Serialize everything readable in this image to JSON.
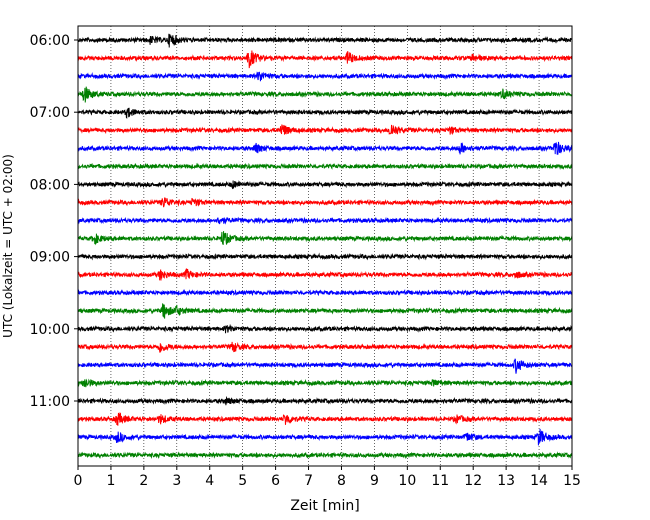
{
  "chart_data": {
    "type": "line",
    "title": "",
    "xlabel": "Zeit  [min]",
    "ylabel": "UTC (Lokalzeit = UTC + 02:00)",
    "xlim": [
      0,
      15
    ],
    "x_ticks": [
      0,
      1,
      2,
      3,
      4,
      5,
      6,
      7,
      8,
      9,
      10,
      11,
      12,
      13,
      14,
      15
    ],
    "x_tick_labels": [
      "0",
      "1",
      "2",
      "3",
      "4",
      "5",
      "6",
      "7",
      "8",
      "9",
      "10",
      "11",
      "12",
      "13",
      "14",
      "15"
    ],
    "y_tick_labels": [
      "06:00",
      "07:00",
      "08:00",
      "09:00",
      "10:00",
      "11:00"
    ],
    "grid": "vertical-dotted",
    "legend": "none",
    "trace_colors": [
      "#000000",
      "#ff0000",
      "#0000ff",
      "#008000"
    ],
    "traces_start": "06:00",
    "trace_interval_min": 15,
    "series": [
      {
        "start": "06:00",
        "color": "#000000",
        "events": [
          [
            2.2,
            0.35
          ],
          [
            2.8,
            0.75
          ]
        ]
      },
      {
        "start": "06:15",
        "color": "#ff0000",
        "events": [
          [
            5.2,
            1.0
          ],
          [
            8.2,
            0.6
          ],
          [
            12.0,
            0.35
          ]
        ]
      },
      {
        "start": "06:30",
        "color": "#0000ff",
        "events": [
          [
            5.5,
            0.55
          ]
        ]
      },
      {
        "start": "06:45",
        "color": "#008000",
        "events": [
          [
            0.2,
            0.85
          ],
          [
            12.9,
            0.45
          ]
        ]
      },
      {
        "start": "07:00",
        "color": "#000000",
        "events": [
          [
            1.5,
            0.5
          ]
        ]
      },
      {
        "start": "07:15",
        "color": "#ff0000",
        "events": [
          [
            6.2,
            0.65
          ],
          [
            9.5,
            0.75
          ],
          [
            11.3,
            0.3
          ]
        ]
      },
      {
        "start": "07:30",
        "color": "#0000ff",
        "events": [
          [
            5.4,
            0.5
          ],
          [
            11.6,
            0.55
          ],
          [
            14.5,
            0.85
          ]
        ]
      },
      {
        "start": "07:45",
        "color": "#008000",
        "events": []
      },
      {
        "start": "08:00",
        "color": "#000000",
        "events": [
          [
            4.7,
            0.35
          ]
        ]
      },
      {
        "start": "08:15",
        "color": "#ff0000",
        "events": [
          [
            2.6,
            0.55
          ],
          [
            3.5,
            0.35
          ]
        ]
      },
      {
        "start": "08:30",
        "color": "#0000ff",
        "events": [
          [
            4.3,
            0.35
          ]
        ]
      },
      {
        "start": "08:45",
        "color": "#008000",
        "events": [
          [
            0.5,
            0.5
          ],
          [
            4.4,
            0.8
          ]
        ]
      },
      {
        "start": "09:00",
        "color": "#000000",
        "events": []
      },
      {
        "start": "09:15",
        "color": "#ff0000",
        "events": [
          [
            2.5,
            0.5
          ],
          [
            3.3,
            0.45
          ],
          [
            13.3,
            0.3
          ]
        ]
      },
      {
        "start": "09:30",
        "color": "#0000ff",
        "events": []
      },
      {
        "start": "09:45",
        "color": "#008000",
        "events": [
          [
            2.6,
            0.8
          ],
          [
            3.0,
            0.4
          ]
        ]
      },
      {
        "start": "10:00",
        "color": "#000000",
        "events": [
          [
            4.5,
            0.3
          ]
        ]
      },
      {
        "start": "10:15",
        "color": "#ff0000",
        "events": [
          [
            2.5,
            0.55
          ],
          [
            4.7,
            0.5
          ]
        ]
      },
      {
        "start": "10:30",
        "color": "#0000ff",
        "events": [
          [
            13.3,
            0.75
          ]
        ]
      },
      {
        "start": "10:45",
        "color": "#008000",
        "events": [
          [
            0.2,
            0.5
          ],
          [
            10.8,
            0.3
          ]
        ]
      },
      {
        "start": "11:00",
        "color": "#000000",
        "events": [
          [
            4.5,
            0.3
          ]
        ]
      },
      {
        "start": "11:15",
        "color": "#ff0000",
        "events": [
          [
            1.2,
            0.65
          ],
          [
            2.5,
            0.45
          ],
          [
            6.3,
            0.6
          ],
          [
            11.5,
            0.35
          ]
        ]
      },
      {
        "start": "11:30",
        "color": "#0000ff",
        "events": [
          [
            1.2,
            0.55
          ],
          [
            11.8,
            0.45
          ],
          [
            14.0,
            0.85
          ]
        ]
      },
      {
        "start": "11:45",
        "color": "#008000",
        "events": []
      }
    ]
  }
}
